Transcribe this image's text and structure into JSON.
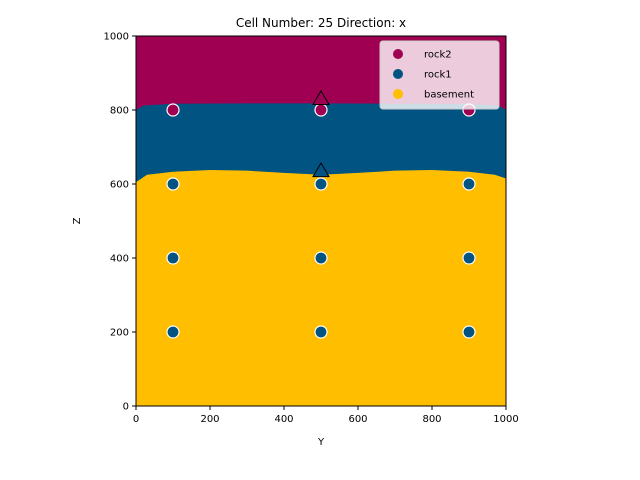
{
  "chart_data": {
    "type": "geological_section",
    "title": "Cell Number: 25 Direction: x",
    "xlabel": "Y",
    "ylabel": "Z",
    "xlim": [
      0,
      1000
    ],
    "ylim": [
      0,
      1000
    ],
    "xticks": [
      "0",
      "200",
      "400",
      "600",
      "800",
      "1000"
    ],
    "yticks": [
      "0",
      "200",
      "400",
      "600",
      "800",
      "1000"
    ],
    "legend_position": "top-right",
    "grid": false,
    "layers": [
      {
        "name": "rock2",
        "color": "#9f0052",
        "bottom_profile": [
          [
            0,
            800
          ],
          [
            20,
            812
          ],
          [
            100,
            817
          ],
          [
            300,
            818
          ],
          [
            500,
            818
          ],
          [
            700,
            817
          ],
          [
            900,
            816
          ],
          [
            980,
            812
          ],
          [
            1000,
            800
          ]
        ]
      },
      {
        "name": "rock1",
        "color": "#015482",
        "bottom_profile": [
          [
            0,
            605
          ],
          [
            30,
            625
          ],
          [
            100,
            633
          ],
          [
            200,
            638
          ],
          [
            300,
            636
          ],
          [
            400,
            630
          ],
          [
            500,
            625
          ],
          [
            600,
            630
          ],
          [
            700,
            636
          ],
          [
            800,
            638
          ],
          [
            900,
            633
          ],
          [
            970,
            625
          ],
          [
            1000,
            615
          ]
        ]
      },
      {
        "name": "basement",
        "color": "#ffbe00"
      }
    ],
    "legend": [
      {
        "label": "rock2",
        "color": "#9f0052"
      },
      {
        "label": "rock1",
        "color": "#015482"
      },
      {
        "label": "basement",
        "color": "#ffbe00"
      }
    ],
    "surface_points": [
      {
        "y": 100,
        "z": 800,
        "color": "#9f0052"
      },
      {
        "y": 500,
        "z": 800,
        "color": "#9f0052"
      },
      {
        "y": 900,
        "z": 800,
        "color": "#9f0052"
      },
      {
        "y": 100,
        "z": 600,
        "color": "#015482"
      },
      {
        "y": 500,
        "z": 600,
        "color": "#015482"
      },
      {
        "y": 900,
        "z": 600,
        "color": "#015482"
      },
      {
        "y": 100,
        "z": 400,
        "color": "#015482"
      },
      {
        "y": 500,
        "z": 400,
        "color": "#015482"
      },
      {
        "y": 900,
        "z": 400,
        "color": "#015482"
      },
      {
        "y": 100,
        "z": 200,
        "color": "#015482"
      },
      {
        "y": 500,
        "z": 200,
        "color": "#015482"
      },
      {
        "y": 900,
        "z": 200,
        "color": "#015482"
      }
    ],
    "orientations": [
      {
        "y": 500,
        "z": 830,
        "color": "#9f0052"
      },
      {
        "y": 500,
        "z": 635,
        "color": "#015482"
      }
    ]
  }
}
